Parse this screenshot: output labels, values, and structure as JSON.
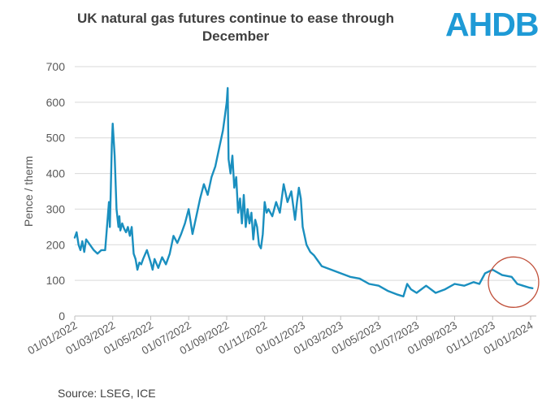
{
  "title_line1": "UK natural gas futures continue to ease through",
  "title_line2": "December",
  "logo_text": "AHDB",
  "source": "Source: LSEG, ICE",
  "colors": {
    "series": "#1a8fbf",
    "logo": "#1e9ad6",
    "highlight_circle": "#c0503a",
    "grid": "#d9d9d9",
    "text": "#595959"
  },
  "chart_data": {
    "type": "line",
    "title": "UK natural gas futures continue to ease through December",
    "xlabel": "",
    "ylabel": "Pence / therm",
    "ylim": [
      0,
      700
    ],
    "yticks": [
      0,
      100,
      200,
      300,
      400,
      500,
      600,
      700
    ],
    "x_tick_labels": [
      "01/01/2022",
      "01/03/2022",
      "01/05/2022",
      "01/07/2022",
      "01/09/2022",
      "01/11/2022",
      "01/01/2023",
      "01/03/2023",
      "01/05/2023",
      "01/07/2023",
      "01/09/2023",
      "01/11/2023",
      "01/01/2024"
    ],
    "x_unit": "months since 01/01/2022",
    "x_range": [
      0,
      24.3
    ],
    "annotation": "circle highlighting December 2023 values",
    "series": [
      {
        "name": "UK natural gas futures",
        "x": [
          0,
          0.1,
          0.2,
          0.3,
          0.4,
          0.5,
          0.6,
          0.8,
          1.0,
          1.2,
          1.4,
          1.6,
          1.8,
          1.85,
          1.9,
          1.95,
          2.0,
          2.1,
          2.2,
          2.3,
          2.35,
          2.4,
          2.5,
          2.6,
          2.7,
          2.8,
          2.9,
          3.0,
          3.1,
          3.2,
          3.3,
          3.4,
          3.5,
          3.6,
          3.8,
          4.0,
          4.1,
          4.2,
          4.4,
          4.6,
          4.8,
          5.0,
          5.2,
          5.4,
          5.6,
          5.8,
          6.0,
          6.2,
          6.4,
          6.6,
          6.8,
          7.0,
          7.2,
          7.4,
          7.6,
          7.8,
          7.9,
          8.0,
          8.05,
          8.1,
          8.2,
          8.3,
          8.4,
          8.5,
          8.6,
          8.7,
          8.8,
          8.9,
          9.0,
          9.1,
          9.2,
          9.3,
          9.4,
          9.5,
          9.6,
          9.7,
          9.8,
          9.9,
          10.0,
          10.1,
          10.2,
          10.4,
          10.6,
          10.8,
          11.0,
          11.2,
          11.4,
          11.6,
          11.7,
          11.8,
          11.9,
          12.0,
          12.2,
          12.4,
          12.6,
          12.8,
          13.0,
          13.5,
          14.0,
          14.5,
          15.0,
          15.5,
          16.0,
          16.5,
          17.0,
          17.3,
          17.5,
          17.7,
          18.0,
          18.5,
          19.0,
          19.5,
          20.0,
          20.5,
          21.0,
          21.3,
          21.6,
          22.0,
          22.5,
          23.0,
          23.3,
          23.6,
          23.9,
          24.1
        ],
        "values": [
          220,
          235,
          200,
          185,
          210,
          180,
          215,
          200,
          185,
          175,
          185,
          185,
          320,
          250,
          360,
          480,
          540,
          450,
          300,
          250,
          280,
          240,
          260,
          245,
          235,
          250,
          225,
          250,
          175,
          160,
          130,
          150,
          145,
          160,
          185,
          150,
          130,
          160,
          135,
          165,
          145,
          175,
          225,
          205,
          230,
          260,
          300,
          230,
          280,
          330,
          370,
          340,
          390,
          420,
          470,
          520,
          560,
          600,
          640,
          440,
          400,
          450,
          360,
          390,
          290,
          330,
          260,
          340,
          250,
          300,
          260,
          290,
          215,
          270,
          250,
          200,
          190,
          230,
          320,
          290,
          300,
          280,
          320,
          290,
          370,
          320,
          350,
          270,
          320,
          360,
          330,
          250,
          200,
          180,
          170,
          155,
          140,
          130,
          120,
          110,
          105,
          90,
          85,
          70,
          60,
          55,
          90,
          75,
          65,
          85,
          65,
          75,
          90,
          85,
          95,
          90,
          120,
          130,
          115,
          110,
          90,
          85,
          80,
          78
        ]
      }
    ]
  }
}
